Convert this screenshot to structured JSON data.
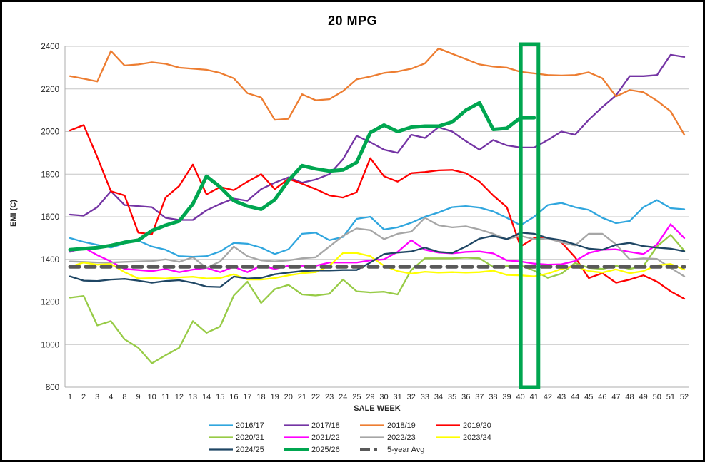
{
  "chart_data": {
    "type": "line",
    "title": "20 MPG",
    "xlabel": "SALE WEEK",
    "ylabel": "EMI (C)",
    "ylim": [
      800,
      2400
    ],
    "ytick_step": 200,
    "grid": "horizontal-gridlines",
    "legend_position": "bottom",
    "x": [
      1,
      2,
      3,
      4,
      8,
      9,
      10,
      11,
      12,
      13,
      14,
      15,
      16,
      17,
      18,
      19,
      20,
      21,
      22,
      23,
      24,
      25,
      29,
      30,
      31,
      32,
      33,
      34,
      35,
      36,
      37,
      38,
      39,
      40,
      41,
      42,
      43,
      44,
      45,
      46,
      47,
      48,
      49,
      50,
      51,
      52
    ],
    "series": [
      {
        "name": "2016/17",
        "color": "#30A6DE",
        "width": 2.3,
        "values": [
          1500,
          1482,
          1468,
          1455,
          1475,
          1488,
          1460,
          1445,
          1415,
          1412,
          1415,
          1437,
          1477,
          1473,
          1455,
          1425,
          1447,
          1520,
          1525,
          1490,
          1505,
          1590,
          1600,
          1540,
          1550,
          1572,
          1600,
          1620,
          1645,
          1650,
          1643,
          1625,
          1595,
          1560,
          1600,
          1655,
          1665,
          1645,
          1632,
          1595,
          1570,
          1580,
          1645,
          1678,
          1640,
          1635
        ]
      },
      {
        "name": "2017/18",
        "color": "#7434A4",
        "width": 2.3,
        "values": [
          1610,
          1605,
          1645,
          1720,
          1655,
          1650,
          1645,
          1595,
          1585,
          1585,
          1630,
          1660,
          1685,
          1675,
          1730,
          1760,
          1785,
          1760,
          1775,
          1800,
          1870,
          1980,
          1950,
          1915,
          1900,
          1985,
          1970,
          2020,
          2000,
          1955,
          1915,
          1960,
          1935,
          1925,
          1925,
          1960,
          2000,
          1985,
          2055,
          2115,
          2170,
          2260,
          2260,
          2265,
          2360,
          2350
        ]
      },
      {
        "name": "2018/19",
        "color": "#ED7D31",
        "width": 2.3,
        "values": [
          2260,
          2248,
          2235,
          2378,
          2310,
          2315,
          2325,
          2318,
          2300,
          2295,
          2290,
          2275,
          2250,
          2180,
          2160,
          2055,
          2060,
          2175,
          2147,
          2152,
          2190,
          2245,
          2258,
          2275,
          2282,
          2295,
          2320,
          2390,
          2365,
          2340,
          2315,
          2305,
          2300,
          2280,
          2273,
          2265,
          2263,
          2265,
          2278,
          2250,
          2165,
          2195,
          2185,
          2145,
          2095,
          1985
        ]
      },
      {
        "name": "2019/20",
        "color": "#FF0000",
        "width": 2.3,
        "values": [
          2005,
          2030,
          1880,
          1720,
          1700,
          1525,
          1518,
          1690,
          1745,
          1845,
          1705,
          1740,
          1725,
          1765,
          1800,
          1730,
          1778,
          1755,
          1730,
          1700,
          1690,
          1715,
          1875,
          1790,
          1765,
          1805,
          1810,
          1818,
          1820,
          1805,
          1765,
          1700,
          1645,
          1460,
          1500,
          1500,
          1480,
          1410,
          1312,
          1335,
          1290,
          1305,
          1325,
          1295,
          1250,
          1215
        ]
      },
      {
        "name": "2020/21",
        "color": "#97CB46",
        "width": 2.3,
        "values": [
          1220,
          1228,
          1090,
          1110,
          1025,
          985,
          912,
          950,
          985,
          1110,
          1055,
          1085,
          1230,
          1295,
          1195,
          1260,
          1280,
          1235,
          1230,
          1238,
          1305,
          1250,
          1245,
          1248,
          1235,
          1350,
          1405,
          1405,
          1405,
          1408,
          1405,
          1365,
          1368,
          1372,
          1347,
          1313,
          1333,
          1383,
          1360,
          1355,
          1370,
          1355,
          1368,
          1460,
          1515,
          1440
        ]
      },
      {
        "name": "2021/22",
        "color": "#FF00FF",
        "width": 2.3,
        "values": [
          1435,
          1455,
          1420,
          1390,
          1355,
          1350,
          1345,
          1355,
          1340,
          1352,
          1360,
          1340,
          1365,
          1340,
          1370,
          1355,
          1370,
          1370,
          1370,
          1385,
          1385,
          1385,
          1395,
          1400,
          1435,
          1490,
          1445,
          1432,
          1428,
          1435,
          1437,
          1428,
          1395,
          1390,
          1380,
          1375,
          1377,
          1392,
          1430,
          1445,
          1447,
          1435,
          1425,
          1470,
          1565,
          1500
        ]
      },
      {
        "name": "2022/23",
        "color": "#A6A6A6",
        "width": 2.3,
        "values": [
          1390,
          1388,
          1385,
          1385,
          1388,
          1390,
          1392,
          1400,
          1388,
          1410,
          1360,
          1390,
          1460,
          1415,
          1395,
          1390,
          1395,
          1405,
          1410,
          1460,
          1510,
          1545,
          1537,
          1495,
          1520,
          1530,
          1595,
          1560,
          1550,
          1555,
          1540,
          1520,
          1495,
          1510,
          1495,
          1498,
          1480,
          1465,
          1520,
          1520,
          1470,
          1400,
          1405,
          1402,
          1360,
          1320
        ]
      },
      {
        "name": "2023/24",
        "color": "#FFFF00",
        "width": 2.3,
        "values": [
          1365,
          1385,
          1375,
          1378,
          1340,
          1310,
          1312,
          1310,
          1315,
          1318,
          1310,
          1312,
          1330,
          1305,
          1305,
          1312,
          1325,
          1335,
          1340,
          1370,
          1430,
          1430,
          1415,
          1370,
          1345,
          1333,
          1342,
          1338,
          1340,
          1338,
          1340,
          1347,
          1327,
          1325,
          1320,
          1333,
          1355,
          1368,
          1345,
          1338,
          1353,
          1335,
          1345,
          1372,
          1378,
          1352
        ]
      },
      {
        "name": "2024/25",
        "color": "#1F4664",
        "width": 2.3,
        "values": [
          1320,
          1300,
          1298,
          1305,
          1308,
          1300,
          1290,
          1298,
          1302,
          1290,
          1272,
          1270,
          1319,
          1310,
          1313,
          1330,
          1338,
          1345,
          1348,
          1348,
          1350,
          1350,
          1385,
          1425,
          1432,
          1437,
          1455,
          1435,
          1430,
          1460,
          1497,
          1510,
          1495,
          1525,
          1520,
          1500,
          1490,
          1470,
          1450,
          1445,
          1468,
          1477,
          1462,
          1455,
          1450,
          1438
        ]
      },
      {
        "name": "2025/26",
        "color": "#00A650",
        "width": 5,
        "values": [
          1445,
          1450,
          1455,
          1465,
          1480,
          1490,
          1535,
          1560,
          1580,
          1660,
          1790,
          1740,
          1675,
          1650,
          1635,
          1680,
          1770,
          1840,
          1825,
          1815,
          1820,
          1855,
          1995,
          2030,
          2000,
          2020,
          2025,
          2025,
          2045,
          2100,
          2135,
          2010,
          2015,
          2065,
          2065
        ]
      },
      {
        "name": "5-year Avg",
        "color": "#595959",
        "width": 5,
        "dash": [
          13,
          9
        ],
        "constant": 1365
      }
    ],
    "highlight": {
      "label": "current-week-box",
      "x_from": 40,
      "x_to": 41,
      "color": "#00A650"
    }
  }
}
